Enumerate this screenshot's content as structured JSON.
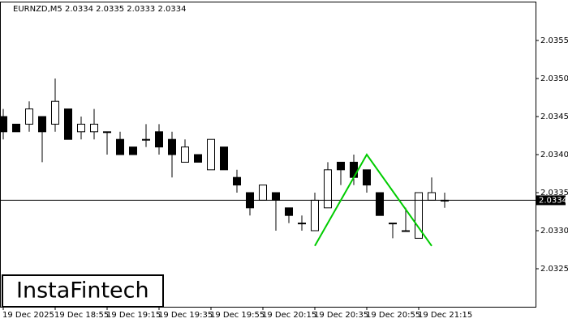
{
  "chart_data": {
    "type": "candlestick",
    "title": "EURNZD,M5  2.0334 2.0335 2.0333 2.0334",
    "categories": [
      "19 Dec 2025",
      null,
      null,
      null,
      "19 Dec 18:55",
      null,
      null,
      null,
      "19 Dec 19:15",
      null,
      null,
      null,
      "19 Dec 19:35",
      null,
      null,
      null,
      "19 Dec 19:55",
      null,
      null,
      null,
      "19 Dec 20:15",
      null,
      null,
      null,
      "19 Dec 20:35",
      null,
      null,
      null,
      "19 Dec 20:55",
      null,
      null,
      null,
      "19 Dec 21:15",
      null,
      null
    ],
    "open": [
      2.0345,
      2.0344,
      2.0344,
      2.0345,
      2.0344,
      2.0346,
      2.0343,
      2.0343,
      2.0343,
      2.0342,
      2.0341,
      2.0342,
      2.0343,
      2.0342,
      2.0339,
      2.034,
      2.0338,
      2.0341,
      2.0337,
      2.0335,
      2.0334,
      2.0335,
      2.0333,
      2.0331,
      2.033,
      2.0333,
      2.0339,
      2.0339,
      2.0338,
      2.0335,
      2.0331,
      2.033,
      2.0329,
      2.0334,
      2.0334
    ],
    "high": [
      2.0346,
      2.0344,
      2.0347,
      2.0345,
      2.035,
      2.0346,
      2.0345,
      2.0346,
      2.0343,
      2.0343,
      2.0341,
      2.0344,
      2.0344,
      2.0343,
      2.0342,
      2.034,
      2.0342,
      2.0341,
      2.0338,
      2.0335,
      2.0336,
      2.0335,
      2.0333,
      2.0332,
      2.0335,
      2.0339,
      2.0339,
      2.034,
      2.0338,
      2.0335,
      2.0331,
      2.0333,
      2.0335,
      2.0337,
      2.0335
    ],
    "low": [
      2.0342,
      2.0343,
      2.0343,
      2.0339,
      2.0343,
      2.0342,
      2.0342,
      2.0342,
      2.034,
      2.034,
      2.034,
      2.0341,
      2.034,
      2.0337,
      2.0339,
      2.0339,
      2.0338,
      2.0338,
      2.0335,
      2.0332,
      2.0334,
      2.033,
      2.0331,
      2.033,
      2.033,
      2.0333,
      2.0336,
      2.0336,
      2.0335,
      2.0332,
      2.0329,
      2.033,
      2.0329,
      2.0334,
      2.0333
    ],
    "close": [
      2.0343,
      2.0343,
      2.0346,
      2.0343,
      2.0347,
      2.0342,
      2.0344,
      2.0344,
      2.0343,
      2.034,
      2.034,
      2.0342,
      2.0341,
      2.034,
      2.0341,
      2.0339,
      2.0342,
      2.0338,
      2.0336,
      2.0333,
      2.0336,
      2.0334,
      2.0332,
      2.0331,
      2.0334,
      2.0338,
      2.0338,
      2.0337,
      2.0336,
      2.0332,
      2.0331,
      2.033,
      2.0335,
      2.0335,
      2.0334
    ],
    "ylim": [
      2.032,
      2.036
    ],
    "yticks": [
      2.0325,
      {
        "value": 2.033,
        "label": "2.0330"
      },
      2.0335,
      {
        "value": 2.034,
        "label": "2.0340"
      },
      2.0345,
      {
        "value": 2.035,
        "label": "2.0350"
      },
      2.0355
    ],
    "current_price": 2.0334,
    "pattern": {
      "color": "#00cc00",
      "x": [
        24,
        28,
        33
      ],
      "y": [
        2.0328,
        2.034,
        2.0328
      ]
    },
    "logo": "InstaFintech"
  }
}
